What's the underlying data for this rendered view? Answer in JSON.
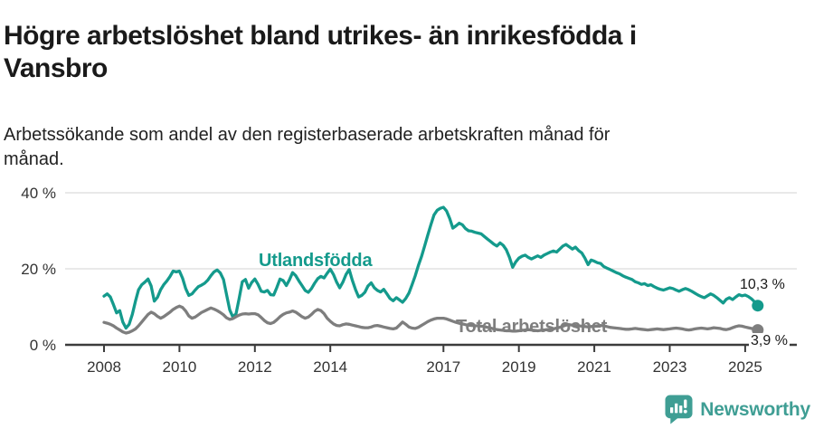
{
  "header": {
    "title": "Högre arbetslöshet bland utrikes- än inrikesfödda i\nVansbro",
    "subtitle": "Arbetssökande som andel av den registerbaserade arbetskraften månad för\nmånad."
  },
  "footer": {
    "brand": "Newsworthy",
    "logo_icon": "speech-bubble-bar-chart-icon"
  },
  "colors": {
    "foreign_born": "#149a8c",
    "total": "#7e7e7e",
    "grid": "#dcdcdc",
    "axis": "#3c3c3c",
    "axis_text": "#333333",
    "title_text": "#1a1a1a",
    "value_label": "#1a1a1a",
    "brand": "#3f9e94"
  },
  "chart_data": {
    "type": "line",
    "title": "Högre arbetslöshet bland utrikes- än inrikesfödda i Vansbro",
    "subtitle": "Arbetssökande som andel av den registerbaserade arbetskraften månad för månad.",
    "unit": "%",
    "x_interval": "monthly",
    "x_start_year": 2008,
    "x_end": "2025-05",
    "ylim": [
      0,
      42
    ],
    "grid": true,
    "legend_position": "inline-labels",
    "x_ticks": [
      2008,
      2010,
      2012,
      2014,
      2017,
      2019,
      2021,
      2023,
      2025
    ],
    "y_ticks": [
      {
        "value": 0,
        "label": "0 %"
      },
      {
        "value": 20,
        "label": "20 %"
      },
      {
        "value": 40,
        "label": "40 %"
      }
    ],
    "series": [
      {
        "name": "Utlandsfödda",
        "color": "#149a8c",
        "end_label": "10,3 %",
        "last_value": 10.3,
        "values": [
          12.8,
          13.4,
          12.6,
          10.6,
          8.4,
          9.0,
          6.0,
          4.4,
          5.4,
          8.0,
          11.5,
          14.5,
          15.8,
          16.5,
          17.3,
          15.5,
          11.5,
          12.5,
          14.5,
          15.8,
          16.8,
          18.0,
          19.4,
          19.2,
          19.4,
          17.5,
          14.8,
          13.0,
          13.4,
          14.4,
          15.3,
          15.7,
          16.2,
          17.0,
          18.2,
          19.2,
          19.7,
          18.9,
          17.2,
          13.2,
          9.2,
          7.3,
          8.2,
          12.2,
          16.6,
          17.2,
          14.9,
          16.4,
          17.3,
          15.9,
          14.1,
          13.9,
          14.3,
          13.2,
          13.1,
          15.1,
          17.3,
          16.9,
          15.6,
          17.1,
          19.0,
          18.2,
          16.8,
          15.6,
          14.3,
          13.8,
          14.8,
          16.2,
          17.4,
          18.0,
          17.6,
          18.8,
          19.9,
          18.5,
          16.5,
          15.0,
          16.5,
          18.5,
          19.8,
          17.0,
          14.6,
          12.6,
          13.0,
          13.8,
          15.5,
          16.3,
          15.0,
          14.3,
          13.9,
          14.6,
          13.4,
          12.2,
          11.6,
          12.4,
          11.8,
          11.2,
          12.2,
          13.6,
          15.8,
          18.1,
          20.8,
          23.2,
          26.0,
          28.8,
          31.6,
          34.2,
          35.4,
          35.9,
          36.2,
          35.2,
          33.2,
          30.7,
          31.3,
          32.0,
          31.6,
          30.6,
          30.0,
          29.9,
          29.6,
          29.4,
          29.2,
          28.5,
          27.8,
          27.2,
          26.5,
          26.0,
          26.8,
          26.2,
          25.0,
          23.0,
          20.4,
          21.8,
          22.8,
          23.3,
          23.6,
          23.0,
          22.6,
          23.0,
          23.4,
          23.0,
          23.6,
          24.0,
          24.4,
          24.7,
          24.4,
          25.2,
          26.0,
          26.4,
          25.8,
          25.2,
          25.7,
          24.8,
          24.2,
          22.8,
          21.1,
          22.3,
          22.0,
          21.6,
          21.4,
          20.6,
          20.2,
          19.8,
          19.4,
          19.0,
          18.7,
          18.2,
          17.8,
          17.5,
          17.2,
          16.6,
          16.3,
          15.9,
          16.1,
          15.6,
          15.8,
          15.3,
          14.9,
          14.6,
          14.4,
          14.7,
          15.0,
          14.8,
          14.4,
          14.1,
          14.5,
          14.8,
          14.5,
          14.1,
          13.6,
          13.1,
          12.7,
          12.4,
          12.9,
          13.4,
          13.0,
          12.4,
          11.7,
          11.0,
          12.0,
          12.4,
          11.9,
          12.6,
          13.2,
          12.9,
          13.1,
          12.7,
          12.1,
          11.3,
          10.3
        ]
      },
      {
        "name": "Total arbetslöshet",
        "color": "#7e7e7e",
        "end_label": "3,9 %",
        "last_value": 3.9,
        "values": [
          5.9,
          5.7,
          5.4,
          5.0,
          4.4,
          3.9,
          3.4,
          3.1,
          3.3,
          3.7,
          4.2,
          5.0,
          6.0,
          7.0,
          8.0,
          8.6,
          8.2,
          7.5,
          7.0,
          7.4,
          8.0,
          8.6,
          9.3,
          9.8,
          10.2,
          9.8,
          8.9,
          7.6,
          7.0,
          7.3,
          7.9,
          8.5,
          8.9,
          9.3,
          9.7,
          9.4,
          9.0,
          8.5,
          7.9,
          7.1,
          6.7,
          6.9,
          7.4,
          7.8,
          8.1,
          8.2,
          8.1,
          8.2,
          8.2,
          7.9,
          7.2,
          6.4,
          5.8,
          5.6,
          5.9,
          6.6,
          7.4,
          8.0,
          8.4,
          8.6,
          8.9,
          8.6,
          8.0,
          7.4,
          7.0,
          7.3,
          8.0,
          8.8,
          9.3,
          9.0,
          8.2,
          7.0,
          6.2,
          5.5,
          5.1,
          5.0,
          5.3,
          5.5,
          5.4,
          5.2,
          5.0,
          4.8,
          4.6,
          4.5,
          4.5,
          4.7,
          5.0,
          5.1,
          4.9,
          4.7,
          4.5,
          4.3,
          4.2,
          4.4,
          5.2,
          6.0,
          5.4,
          4.7,
          4.4,
          4.3,
          4.6,
          5.1,
          5.6,
          6.1,
          6.5,
          6.8,
          7.0,
          7.0,
          7.0,
          6.8,
          6.5,
          6.2,
          5.9,
          5.7,
          5.5,
          5.3,
          5.2,
          5.1,
          5.0,
          5.0,
          4.9,
          4.8,
          4.6,
          4.4,
          4.2,
          4.0,
          3.9,
          3.8,
          3.7,
          3.7,
          3.6,
          3.6,
          3.7,
          3.8,
          3.9,
          4.0,
          3.9,
          3.8,
          3.7,
          3.8,
          3.9,
          4.0,
          4.1,
          4.2,
          4.4,
          4.6,
          4.9,
          5.2,
          5.3,
          5.2,
          5.1,
          5.0,
          4.9,
          4.8,
          4.7,
          4.8,
          4.9,
          5.0,
          5.1,
          5.0,
          4.8,
          4.6,
          4.5,
          4.4,
          4.3,
          4.2,
          4.1,
          4.1,
          4.2,
          4.3,
          4.2,
          4.1,
          4.0,
          3.9,
          4.0,
          4.1,
          4.2,
          4.1,
          4.0,
          4.1,
          4.2,
          4.3,
          4.4,
          4.3,
          4.2,
          4.0,
          3.9,
          4.0,
          4.2,
          4.3,
          4.4,
          4.3,
          4.2,
          4.3,
          4.5,
          4.4,
          4.3,
          4.1,
          4.0,
          4.2,
          4.5,
          4.8,
          5.0,
          4.9,
          4.7,
          4.5,
          4.3,
          4.1,
          3.9
        ]
      }
    ]
  }
}
